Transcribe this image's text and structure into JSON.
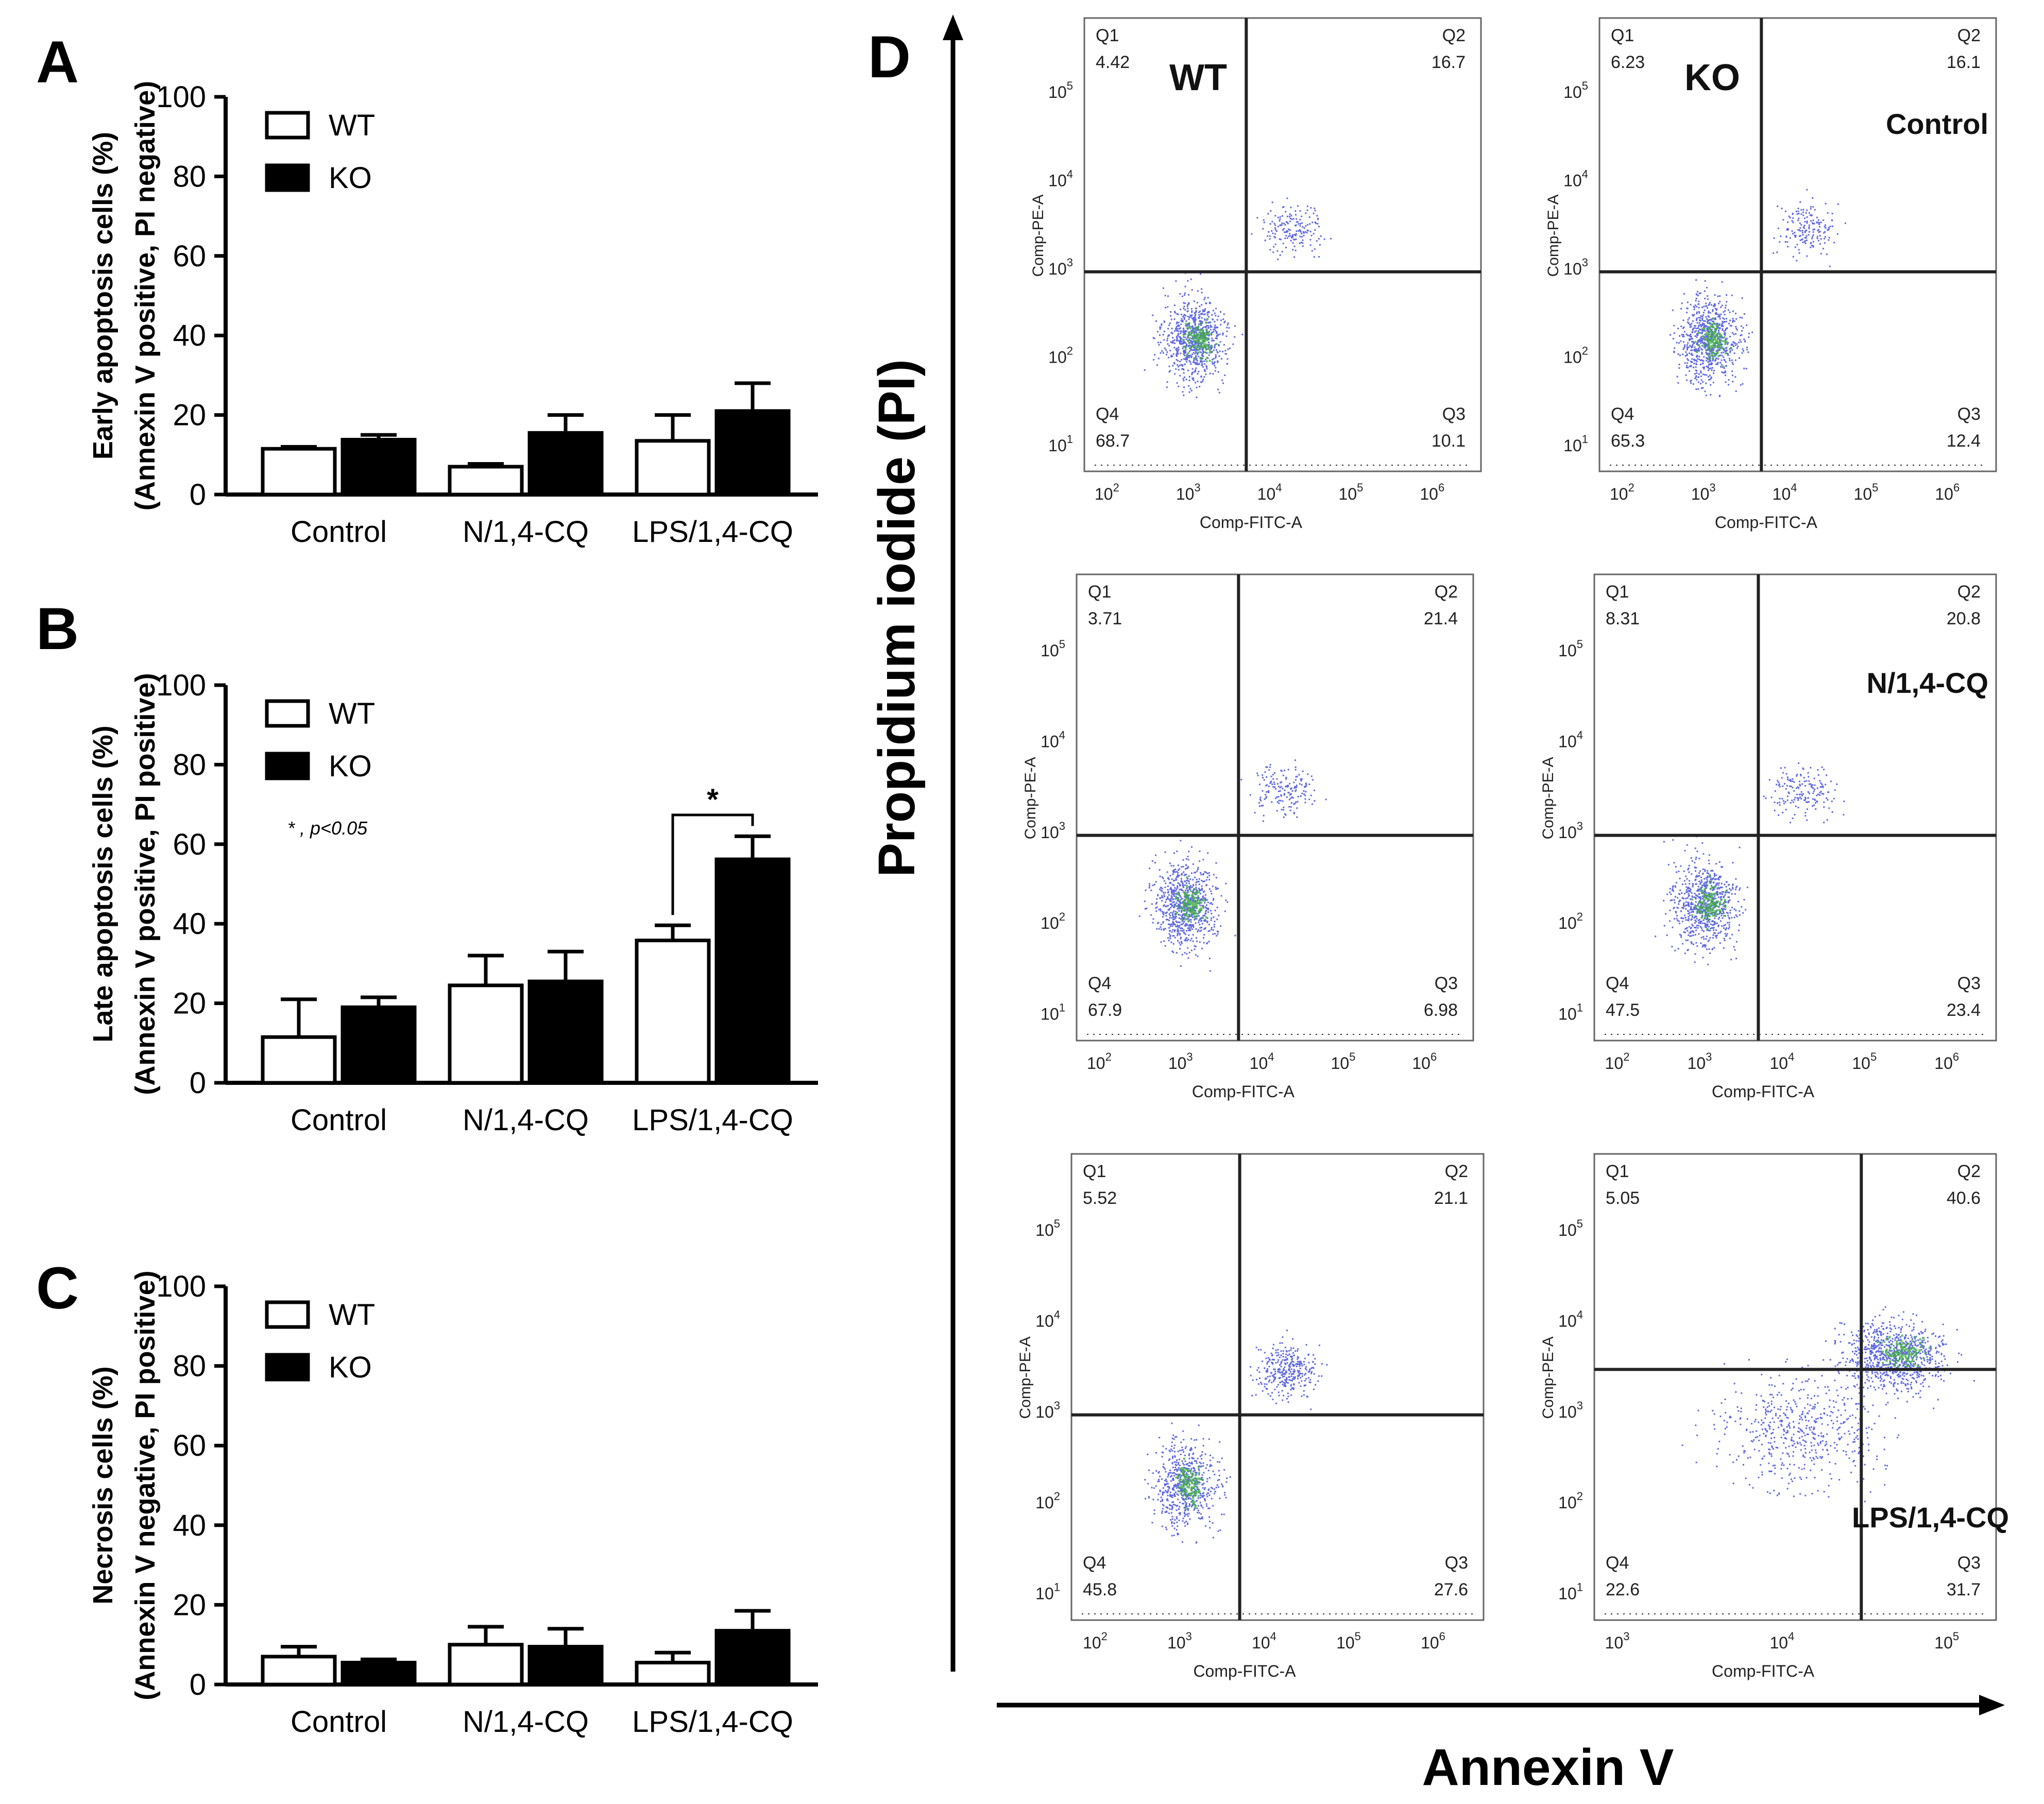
{
  "panel_labels": {
    "a": "A",
    "b": "B",
    "c": "C",
    "d": "D"
  },
  "chart_data": [
    {
      "id": "A",
      "type": "bar",
      "ylabel_line1": "Early apoptosis cells (%)",
      "ylabel_line2": "(Annexin V positive, PI negative)",
      "ylim": [
        0,
        100
      ],
      "yticks": [
        "0",
        "20",
        "40",
        "60",
        "80",
        "100"
      ],
      "categories": [
        "Control",
        "N/1,4-CQ",
        "LPS/1,4-CQ"
      ],
      "legend": [
        "WT",
        "KO"
      ],
      "series": [
        {
          "name": "WT",
          "values": [
            11.5,
            7.0,
            13.5
          ],
          "errors": [
            0.5,
            0.7,
            6.5
          ]
        },
        {
          "name": "KO",
          "values": [
            13.8,
            15.5,
            21.0
          ],
          "errors": [
            1.2,
            4.5,
            7.0
          ]
        }
      ]
    },
    {
      "id": "B",
      "type": "bar",
      "ylabel_line1": "Late apoptosis cells (%)",
      "ylabel_line2": "(Annexin V positive, PI positive)",
      "ylim": [
        0,
        100
      ],
      "yticks": [
        "0",
        "20",
        "40",
        "60",
        "80",
        "100"
      ],
      "categories": [
        "Control",
        "N/1,4-CQ",
        "LPS/1,4-CQ"
      ],
      "legend": [
        "WT",
        "KO"
      ],
      "series": [
        {
          "name": "WT",
          "values": [
            11.5,
            24.5,
            35.8
          ],
          "errors": [
            9.5,
            7.5,
            3.8
          ]
        },
        {
          "name": "KO",
          "values": [
            19.0,
            25.5,
            56.2
          ],
          "errors": [
            2.5,
            7.5,
            5.8
          ]
        }
      ],
      "significance": {
        "star": "*",
        "note": "* , p<0.05"
      }
    },
    {
      "id": "C",
      "type": "bar",
      "ylabel_line1": "Necrosis cells (%)",
      "ylabel_line2": "(Annexin V negative, PI positive)",
      "ylim": [
        0,
        100
      ],
      "yticks": [
        "0",
        "20",
        "40",
        "60",
        "80",
        "100"
      ],
      "categories": [
        "Control",
        "N/1,4-CQ",
        "LPS/1,4-CQ"
      ],
      "legend": [
        "WT",
        "KO"
      ],
      "series": [
        {
          "name": "WT",
          "values": [
            7.0,
            10.0,
            5.5
          ],
          "errors": [
            2.5,
            4.5,
            2.5
          ]
        },
        {
          "name": "KO",
          "values": [
            5.5,
            9.5,
            13.5
          ],
          "errors": [
            0.8,
            4.5,
            5.0
          ]
        }
      ]
    },
    {
      "id": "D",
      "type": "scatter",
      "y_title": "Propidium iodide (PI)",
      "x_title": "Annexin V",
      "plot_ylabel": "Comp-PE-A",
      "plot_xlabel": "Comp-FITC-A",
      "quadrant_names": [
        "Q1",
        "Q2",
        "Q3",
        "Q4"
      ],
      "plots": [
        {
          "genotype": "WT",
          "treatment": "",
          "q1": "4.42",
          "q2": "16.7",
          "q3": "10.1",
          "q4": "68.7",
          "xdec": [
            "2",
            "3",
            "4",
            "5",
            "6"
          ],
          "gate": [
            3.65,
            2.95
          ]
        },
        {
          "genotype": "KO",
          "treatment": "Control",
          "q1": "6.23",
          "q2": "16.1",
          "q3": "12.4",
          "q4": "65.3",
          "xdec": [
            "2",
            "3",
            "4",
            "5",
            "6"
          ],
          "gate": [
            3.65,
            2.95
          ]
        },
        {
          "genotype": "",
          "treatment": "",
          "q1": "3.71",
          "q2": "21.4",
          "q3": "6.98",
          "q4": "67.9",
          "xdec": [
            "2",
            "3",
            "4",
            "5",
            "6"
          ],
          "gate": [
            3.65,
            2.95
          ]
        },
        {
          "genotype": "",
          "treatment": "N/1,4-CQ",
          "q1": "8.31",
          "q2": "20.8",
          "q3": "23.4",
          "q4": "47.5",
          "xdec": [
            "2",
            "3",
            "4",
            "5",
            "6"
          ],
          "gate": [
            3.65,
            2.95
          ]
        },
        {
          "genotype": "",
          "treatment": "",
          "q1": "5.52",
          "q2": "21.1",
          "q3": "27.6",
          "q4": "45.8",
          "xdec": [
            "2",
            "3",
            "4",
            "5",
            "6"
          ],
          "gate": [
            3.65,
            2.95
          ]
        },
        {
          "genotype": "",
          "treatment": "LPS/1,4-CQ",
          "q1": "5.05",
          "q2": "40.6",
          "q3": "31.7",
          "q4": "22.6",
          "xdec": [
            "3",
            "4",
            "5"
          ],
          "gate": [
            4.45,
            3.45
          ]
        }
      ]
    }
  ]
}
